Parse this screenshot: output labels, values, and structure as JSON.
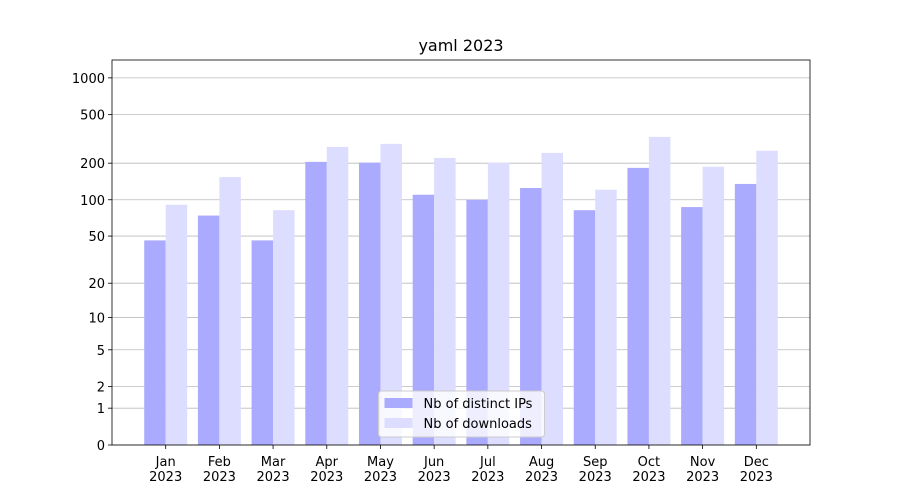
{
  "chart_data": {
    "type": "bar",
    "title": "yaml 2023",
    "categories": [
      "Jan\n2023",
      "Feb\n2023",
      "Mar\n2023",
      "Apr\n2023",
      "May\n2023",
      "Jun\n2023",
      "Jul\n2023",
      "Aug\n2023",
      "Sep\n2023",
      "Oct\n2023",
      "Nov\n2023",
      "Dec\n2023"
    ],
    "series": [
      {
        "name": "Nb of distinct IPs",
        "color": "#aaaaff",
        "values": [
          46,
          74,
          46,
          205,
          202,
          110,
          100,
          125,
          82,
          183,
          87,
          135
        ]
      },
      {
        "name": "Nb of downloads",
        "color": "#ddddff",
        "values": [
          91,
          154,
          82,
          272,
          288,
          221,
          202,
          243,
          121,
          329,
          187,
          253
        ]
      }
    ],
    "yscale": "log1p",
    "ylim": [
      0,
      1400
    ],
    "yticks": [
      0,
      1,
      2,
      5,
      10,
      20,
      50,
      100,
      200,
      500,
      1000
    ],
    "grid": true,
    "legend": "lower center"
  }
}
